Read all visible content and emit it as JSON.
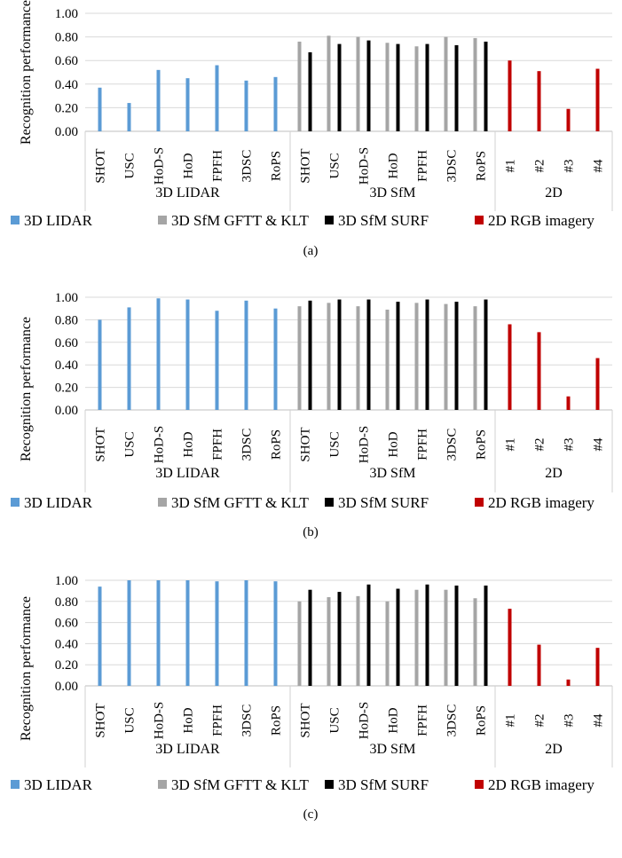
{
  "legend": [
    {
      "label": "3D LIDAR",
      "color": "#5B9BD5"
    },
    {
      "label": "3D SfM GFTT & KLT",
      "color": "#A5A5A5"
    },
    {
      "label": "3D SfM SURF",
      "color": "#000000"
    },
    {
      "label": "2D RGB imagery",
      "color": "#C00000"
    }
  ],
  "chart_data": [
    {
      "type": "bar",
      "caption": "(a)",
      "ylabel": "Recognition performance",
      "ylim": [
        0,
        1
      ],
      "yticks": [
        "0.00",
        "0.20",
        "0.40",
        "0.60",
        "0.80",
        "1.00"
      ],
      "groups": [
        {
          "name": "3D LIDAR",
          "categories": [
            "SHOT",
            "USC",
            "HoD-S",
            "HoD",
            "FPFH",
            "3DSC",
            "RoPS"
          ]
        },
        {
          "name": "3D SfM",
          "categories": [
            "SHOT",
            "USC",
            "HoD-S",
            "HoD",
            "FPFH",
            "3DSC",
            "RoPS"
          ]
        },
        {
          "name": "2D",
          "categories": [
            "#1",
            "#2",
            "#3",
            "#4"
          ]
        }
      ],
      "series": [
        {
          "name": "3D LIDAR",
          "group": "3D LIDAR",
          "values": [
            0.37,
            0.24,
            0.52,
            0.45,
            0.56,
            0.43,
            0.46
          ]
        },
        {
          "name": "3D SfM GFTT & KLT",
          "group": "3D SfM",
          "values": [
            0.76,
            0.81,
            0.8,
            0.75,
            0.72,
            0.8,
            0.79
          ]
        },
        {
          "name": "3D SfM SURF",
          "group": "3D SfM",
          "values": [
            0.67,
            0.74,
            0.77,
            0.74,
            0.74,
            0.73,
            0.76
          ]
        },
        {
          "name": "2D RGB imagery",
          "group": "2D",
          "values": [
            0.6,
            0.51,
            0.19,
            0.53
          ]
        }
      ],
      "legend_position": "bottom"
    },
    {
      "type": "bar",
      "caption": "(b)",
      "ylabel": "Recognition performance",
      "ylim": [
        0,
        1
      ],
      "yticks": [
        "0.00",
        "0.20",
        "0.40",
        "0.60",
        "0.80",
        "1.00"
      ],
      "groups": [
        {
          "name": "3D LIDAR",
          "categories": [
            "SHOT",
            "USC",
            "HoD-S",
            "HoD",
            "FPFH",
            "3DSC",
            "RoPS"
          ]
        },
        {
          "name": "3D SfM",
          "categories": [
            "SHOT",
            "USC",
            "HoD-S",
            "HoD",
            "FPFH",
            "3DSC",
            "RoPS"
          ]
        },
        {
          "name": "2D",
          "categories": [
            "#1",
            "#2",
            "#3",
            "#4"
          ]
        }
      ],
      "series": [
        {
          "name": "3D LIDAR",
          "group": "3D LIDAR",
          "values": [
            0.8,
            0.91,
            0.99,
            0.98,
            0.88,
            0.97,
            0.9
          ]
        },
        {
          "name": "3D SfM GFTT & KLT",
          "group": "3D SfM",
          "values": [
            0.92,
            0.95,
            0.92,
            0.89,
            0.95,
            0.94,
            0.92
          ]
        },
        {
          "name": "3D SfM SURF",
          "group": "3D SfM",
          "values": [
            0.97,
            0.98,
            0.98,
            0.96,
            0.98,
            0.96,
            0.98
          ]
        },
        {
          "name": "2D RGB imagery",
          "group": "2D",
          "values": [
            0.76,
            0.69,
            0.12,
            0.46
          ]
        }
      ],
      "legend_position": "bottom"
    },
    {
      "type": "bar",
      "caption": "(c)",
      "ylabel": "Recognition performance",
      "ylim": [
        0,
        1
      ],
      "yticks": [
        "0.00",
        "0.20",
        "0.40",
        "0.60",
        "0.80",
        "1.00"
      ],
      "groups": [
        {
          "name": "3D LIDAR",
          "categories": [
            "SHOT",
            "USC",
            "HoD-S",
            "HoD",
            "FPFH",
            "3DSC",
            "RoPS"
          ]
        },
        {
          "name": "3D SfM",
          "categories": [
            "SHOT",
            "USC",
            "HoD-S",
            "HoD",
            "FPFH",
            "3DSC",
            "RoPS"
          ]
        },
        {
          "name": "2D",
          "categories": [
            "#1",
            "#2",
            "#3",
            "#4"
          ]
        }
      ],
      "series": [
        {
          "name": "3D LIDAR",
          "group": "3D LIDAR",
          "values": [
            0.94,
            1.0,
            1.0,
            1.0,
            0.99,
            1.0,
            0.99
          ]
        },
        {
          "name": "3D SfM GFTT & KLT",
          "group": "3D SfM",
          "values": [
            0.8,
            0.84,
            0.85,
            0.8,
            0.91,
            0.91,
            0.83
          ]
        },
        {
          "name": "3D SfM SURF",
          "group": "3D SfM",
          "values": [
            0.91,
            0.89,
            0.96,
            0.92,
            0.96,
            0.95,
            0.95
          ]
        },
        {
          "name": "2D RGB imagery",
          "group": "2D",
          "values": [
            0.73,
            0.39,
            0.06,
            0.36
          ]
        }
      ],
      "legend_position": "bottom"
    }
  ]
}
